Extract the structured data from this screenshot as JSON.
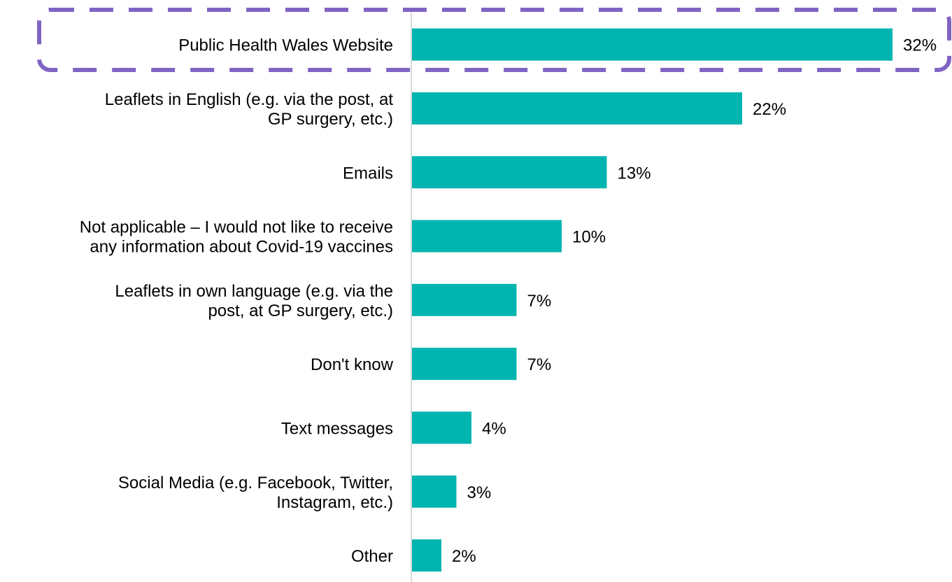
{
  "chart_data": {
    "type": "bar",
    "orientation": "horizontal",
    "categories": [
      [
        "Public Health Wales Website"
      ],
      [
        "Leaflets in English (e.g. via the post, at",
        "GP surgery, etc.)"
      ],
      [
        "Emails"
      ],
      [
        "Not applicable – I would not like to receive",
        "any information about Covid-19 vaccines"
      ],
      [
        "Leaflets in own language (e.g. via the",
        "post, at GP surgery, etc.)"
      ],
      [
        "Don't know"
      ],
      [
        "Text messages"
      ],
      [
        "Social Media (e.g. Facebook, Twitter,",
        "Instagram, etc.)"
      ],
      [
        "Other"
      ]
    ],
    "values": [
      32,
      22,
      13,
      10,
      7,
      7,
      4,
      3,
      2
    ],
    "value_labels": [
      "32%",
      "22%",
      "13%",
      "10%",
      "7%",
      "7%",
      "4%",
      "3%",
      "2%"
    ],
    "xlim": [
      0,
      32
    ],
    "grid": false,
    "bar_color": "#00B5B0",
    "axis_color": "#D9D9D9",
    "highlight": {
      "category_index": 0,
      "style": "dashed-outline",
      "color": "#8064C3"
    }
  }
}
